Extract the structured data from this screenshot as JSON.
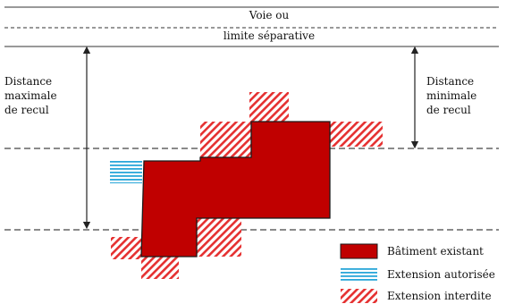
{
  "road_label_line1": "Voie ou",
  "road_label_line2": "limite séparative",
  "max_distance_label": [
    "Distance",
    "maximale",
    "de recul"
  ],
  "min_distance_label": [
    "Distance",
    "minimale",
    "de recul"
  ],
  "legend": {
    "existing": "Bâtiment existant",
    "authorized": "Extension autorisée",
    "forbidden": "Extension interdite"
  },
  "colors": {
    "existing_building": "#c00000",
    "authorized_extension": "#2aa7d9",
    "forbidden_extension": "#e53030",
    "lines": "#333333"
  }
}
